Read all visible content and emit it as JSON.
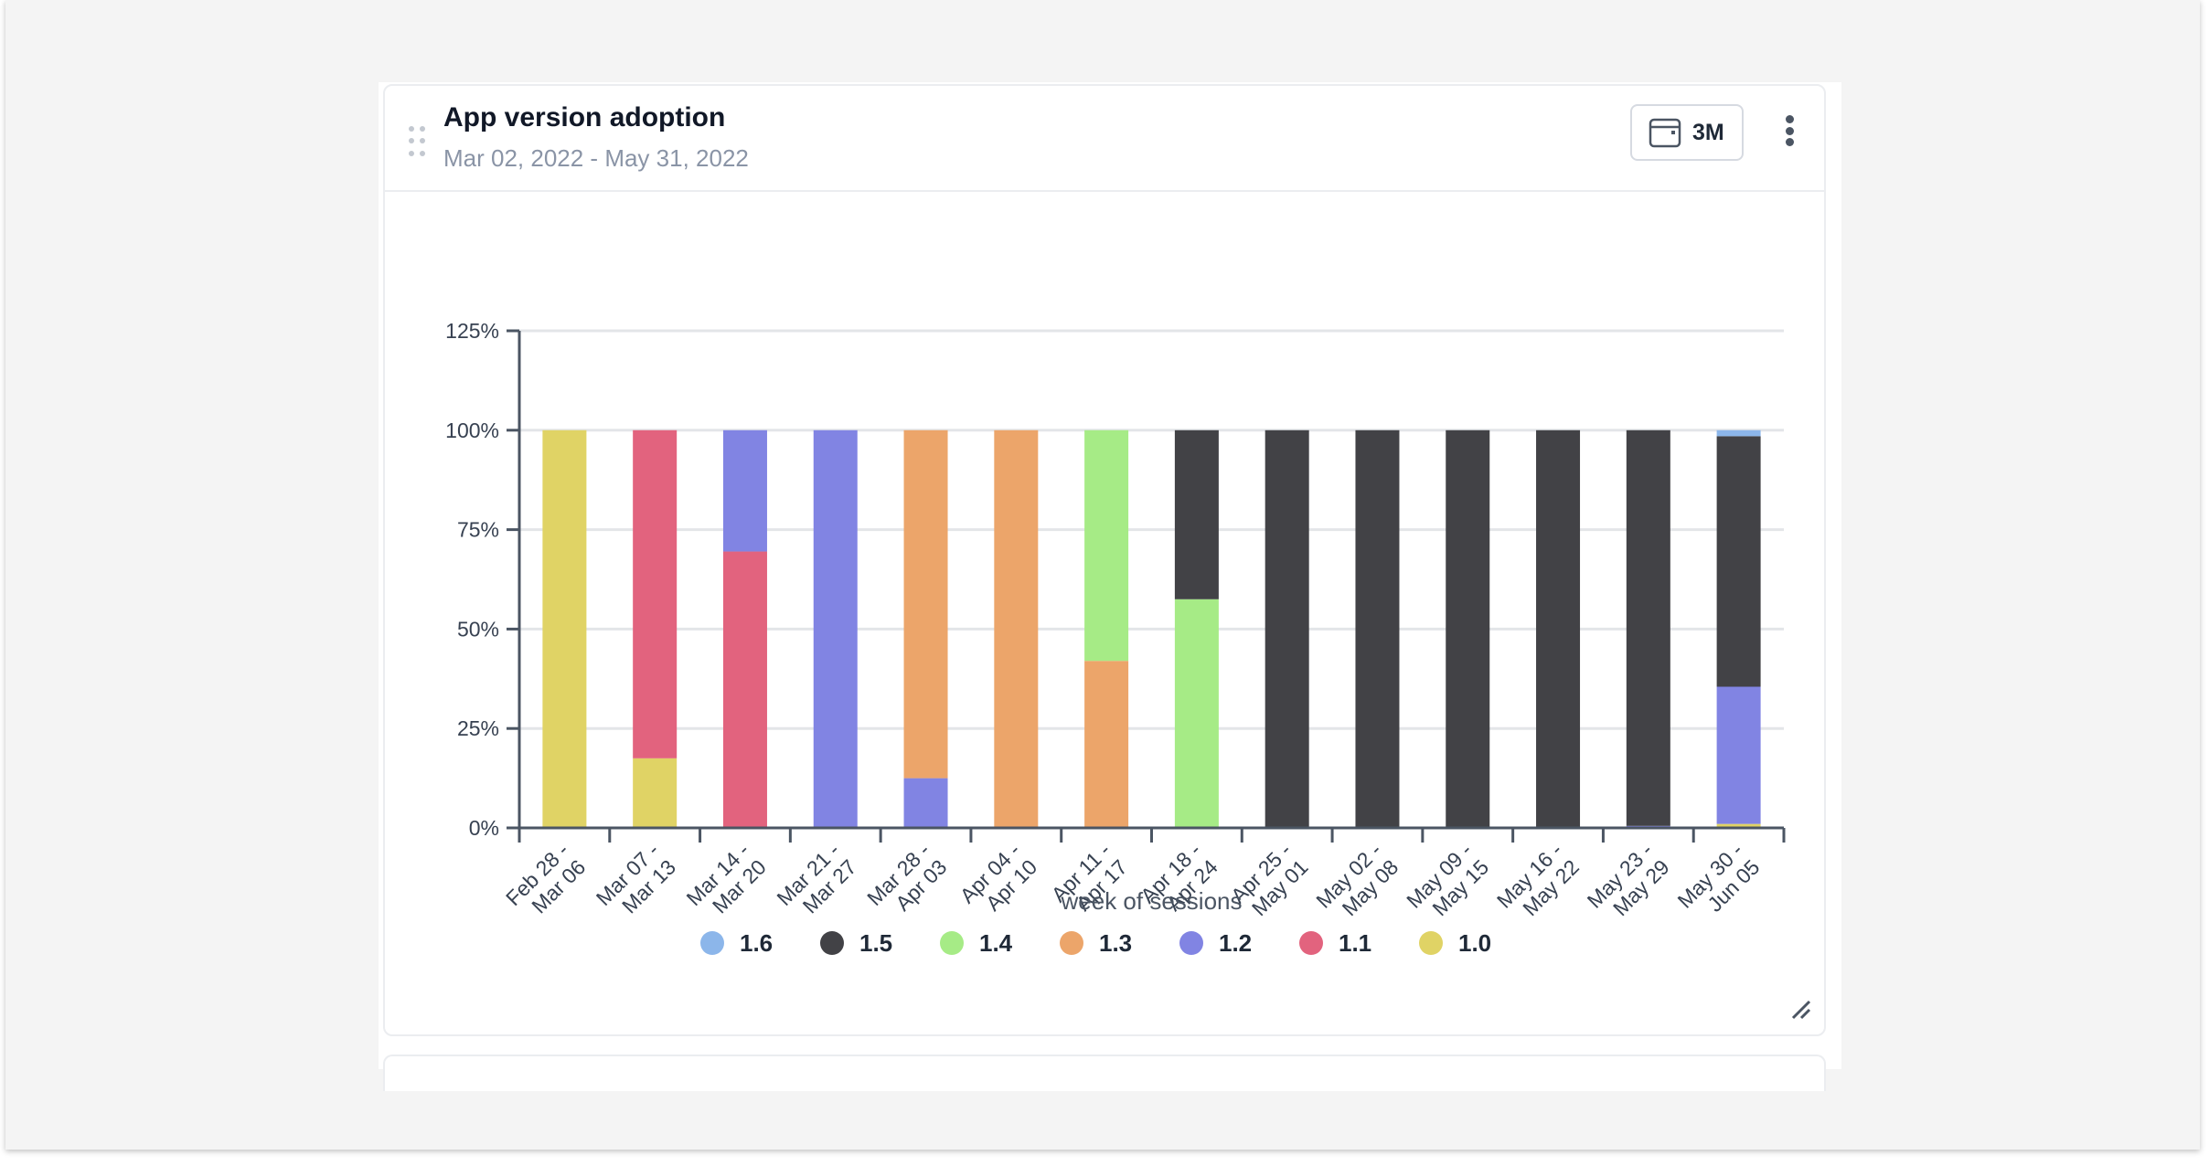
{
  "card": {
    "title": "App version adoption",
    "subtitle": "Mar 02, 2022 - May 31, 2022",
    "range_button_label": "3M"
  },
  "icons": {
    "drag": "drag-handle-icon",
    "calendar": "calendar-icon",
    "more": "more-vertical-icon",
    "resize": "resize-icon"
  },
  "chart_data": {
    "type": "bar",
    "stacked": true,
    "title": "",
    "xlabel": "week of sessions",
    "ylabel": "",
    "ylim": [
      0,
      125
    ],
    "yticks": [
      "0%",
      "25%",
      "50%",
      "75%",
      "100%",
      "125%"
    ],
    "grid": true,
    "legend_position": "bottom",
    "categories": [
      [
        "Feb 28 -",
        "Mar 06"
      ],
      [
        "Mar 07 -",
        "Mar 13"
      ],
      [
        "Mar 14 -",
        "Mar 20"
      ],
      [
        "Mar 21 -",
        "Mar 27"
      ],
      [
        "Mar 28 -",
        "Apr 03"
      ],
      [
        "Apr 04 -",
        "Apr 10"
      ],
      [
        "Apr 11 -",
        "Apr 17"
      ],
      [
        "Apr 18 -",
        "Apr 24"
      ],
      [
        "Apr 25 -",
        "May 01"
      ],
      [
        "May 02 -",
        "May 08"
      ],
      [
        "May 09 -",
        "May 15"
      ],
      [
        "May 16 -",
        "May 22"
      ],
      [
        "May 23 -",
        "May 29"
      ],
      [
        "May 30 -",
        "Jun 05"
      ]
    ],
    "series": [
      {
        "name": "1.0",
        "color": "#e0d365",
        "values": [
          100,
          17.5,
          0,
          0,
          0,
          0,
          0,
          0,
          0,
          0,
          0,
          0,
          0,
          1
        ]
      },
      {
        "name": "1.1",
        "color": "#e2637e",
        "values": [
          0,
          82.5,
          69.5,
          0,
          0,
          0,
          0,
          0,
          0,
          0,
          0,
          0,
          0,
          0
        ]
      },
      {
        "name": "1.2",
        "color": "#8184e3",
        "values": [
          0,
          0,
          30.5,
          100,
          12.5,
          0,
          0,
          0,
          0,
          0,
          0,
          0,
          0.5,
          34.5
        ]
      },
      {
        "name": "1.3",
        "color": "#eca56a",
        "values": [
          0,
          0,
          0,
          0,
          87.5,
          100,
          42,
          0,
          0,
          0,
          0,
          0,
          0,
          0
        ]
      },
      {
        "name": "1.4",
        "color": "#a6eb86",
        "values": [
          0,
          0,
          0,
          0,
          0,
          0,
          58,
          57.5,
          0,
          0,
          0,
          0,
          0,
          0
        ]
      },
      {
        "name": "1.5",
        "color": "#424246",
        "values": [
          0,
          0,
          0,
          0,
          0,
          0,
          0,
          42.5,
          100,
          100,
          100,
          100,
          99.5,
          63
        ]
      },
      {
        "name": "1.6",
        "color": "#8cb6ea",
        "values": [
          0,
          0,
          0,
          0,
          0,
          0,
          0,
          0,
          0,
          0,
          0,
          0,
          0,
          1.5
        ]
      }
    ],
    "legend_order": [
      "1.6",
      "1.5",
      "1.4",
      "1.3",
      "1.2",
      "1.1",
      "1.0"
    ]
  }
}
